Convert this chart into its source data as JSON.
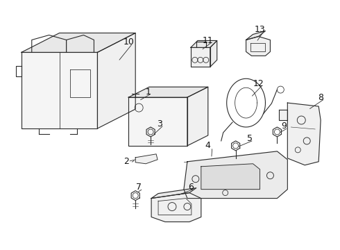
{
  "background_color": "#ffffff",
  "line_color": "#2a2a2a",
  "text_color": "#111111",
  "font_size_label": 9,
  "figsize": [
    4.9,
    3.6
  ],
  "dpi": 100
}
